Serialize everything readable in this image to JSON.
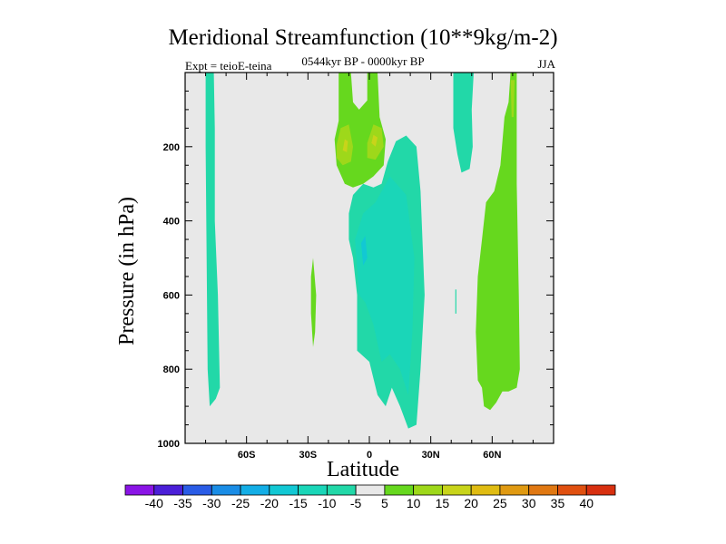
{
  "chart_data": {
    "type": "heatmap",
    "title": "Meridional Streamfunction (10**9kg/m-2)",
    "subtitle": "0544kyr BP - 0000kyr BP",
    "left_label": "Expt = teioE-teina",
    "right_label": "JJA",
    "xlabel": "Latitude",
    "ylabel": "Pressure (in hPa)",
    "xlim": [
      -90,
      90
    ],
    "ylim": [
      1000,
      0
    ],
    "x_ticks": [
      {
        "value": -60,
        "label": "60S"
      },
      {
        "value": -30,
        "label": "30S"
      },
      {
        "value": 0,
        "label": "0"
      },
      {
        "value": 30,
        "label": "30N"
      },
      {
        "value": 60,
        "label": "60N"
      }
    ],
    "y_ticks": [
      {
        "value": 200,
        "label": "200"
      },
      {
        "value": 400,
        "label": "400"
      },
      {
        "value": 600,
        "label": "600"
      },
      {
        "value": 800,
        "label": "800"
      },
      {
        "value": 1000,
        "label": "1000"
      }
    ],
    "background_color": "#e8e8e8",
    "colorbar": {
      "levels": [
        "-40",
        "-35",
        "-30",
        "-25",
        "-20",
        "-15",
        "-10",
        "-5",
        "5",
        "10",
        "15",
        "20",
        "25",
        "30",
        "35",
        "40"
      ],
      "colors": [
        "#8a14e6",
        "#4b1fd8",
        "#2a5ce6",
        "#1a8de6",
        "#13aee6",
        "#12c8d4",
        "#1ad6b8",
        "#22d8a8",
        "#e8e8e8",
        "#66d81e",
        "#9ed81a",
        "#c8d41a",
        "#e0bc12",
        "#e09a12",
        "#e07812",
        "#e05010",
        "#d83010"
      ]
    },
    "regions": [
      {
        "name": "sh-high-lat-negative-column",
        "color": "#22d8a8",
        "points": [
          [
            -80,
            0
          ],
          [
            -76,
            0
          ],
          [
            -75.5,
            150
          ],
          [
            -75.5,
            400
          ],
          [
            -74,
            600
          ],
          [
            -73,
            850
          ],
          [
            -75,
            880
          ],
          [
            -78,
            900
          ],
          [
            -79,
            800
          ],
          [
            -79.5,
            500
          ],
          [
            -80,
            200
          ]
        ]
      },
      {
        "name": "sh-subtropical-positive-sliver",
        "color": "#66d81e",
        "points": [
          [
            -27.5,
            500
          ],
          [
            -26,
            600
          ],
          [
            -26.5,
            700
          ],
          [
            -27.5,
            740
          ],
          [
            -28.5,
            650
          ],
          [
            -28.5,
            550
          ]
        ]
      },
      {
        "name": "tropical-upper-positive-cell",
        "color": "#66d81e",
        "points": [
          [
            -15,
            0
          ],
          [
            -9,
            0
          ],
          [
            -8,
            80
          ],
          [
            -5,
            100
          ],
          [
            -1,
            75
          ],
          [
            -1,
            0
          ],
          [
            4,
            0
          ],
          [
            5,
            120
          ],
          [
            8,
            180
          ],
          [
            7,
            250
          ],
          [
            2,
            280
          ],
          [
            -3,
            300
          ],
          [
            -8,
            310
          ],
          [
            -12,
            300
          ],
          [
            -16,
            250
          ],
          [
            -17,
            180
          ],
          [
            -15,
            130
          ]
        ]
      },
      {
        "name": "tropical-upper-core-a",
        "color": "#9ed81a",
        "points": [
          [
            -16,
            195
          ],
          [
            -14,
            150
          ],
          [
            -10,
            140
          ],
          [
            -8,
            200
          ],
          [
            -9,
            240
          ],
          [
            -13,
            250
          ],
          [
            -16,
            230
          ]
        ]
      },
      {
        "name": "tropical-upper-core-b",
        "color": "#9ed81a",
        "points": [
          [
            -1,
            190
          ],
          [
            2,
            140
          ],
          [
            6,
            150
          ],
          [
            7,
            200
          ],
          [
            3,
            235
          ],
          [
            -1,
            230
          ]
        ]
      },
      {
        "name": "tropical-upper-peak-a",
        "color": "#c8d41a",
        "points": [
          [
            -13,
            210
          ],
          [
            -12,
            180
          ],
          [
            -10.5,
            185
          ],
          [
            -11,
            215
          ]
        ]
      },
      {
        "name": "tropical-upper-peak-b",
        "color": "#c8d41a",
        "points": [
          [
            1,
            190
          ],
          [
            2,
            168
          ],
          [
            4,
            175
          ],
          [
            3,
            200
          ]
        ]
      },
      {
        "name": "tropical-lower-negative-cell",
        "color": "#22d8a8",
        "points": [
          [
            -10,
            450
          ],
          [
            -10,
            380
          ],
          [
            -8,
            330
          ],
          [
            -3,
            300
          ],
          [
            2,
            310
          ],
          [
            6,
            300
          ],
          [
            9,
            240
          ],
          [
            13,
            185
          ],
          [
            18,
            170
          ],
          [
            23,
            200
          ],
          [
            25,
            320
          ],
          [
            27,
            600
          ],
          [
            25,
            800
          ],
          [
            23,
            950
          ],
          [
            19,
            960
          ],
          [
            15,
            900
          ],
          [
            11,
            850
          ],
          [
            8,
            900
          ],
          [
            4,
            870
          ],
          [
            0,
            780
          ],
          [
            -6,
            750
          ],
          [
            -6,
            600
          ],
          [
            -8,
            500
          ]
        ]
      },
      {
        "name": "tropical-lower-core",
        "color": "#1ad6b8",
        "points": [
          [
            -5,
            600
          ],
          [
            -7,
            450
          ],
          [
            -3,
            380
          ],
          [
            3,
            350
          ],
          [
            10,
            280
          ],
          [
            18,
            330
          ],
          [
            22,
            500
          ],
          [
            21,
            700
          ],
          [
            19,
            870
          ],
          [
            15,
            800
          ],
          [
            10,
            760
          ],
          [
            6,
            780
          ],
          [
            2,
            680
          ],
          [
            -2,
            620
          ]
        ]
      },
      {
        "name": "tropical-lower-peak",
        "color": "#12c8d4",
        "points": [
          [
            -3,
            520
          ],
          [
            -4,
            460
          ],
          [
            -2,
            440
          ],
          [
            -1,
            500
          ]
        ]
      },
      {
        "name": "nh-midlat-negative-column",
        "color": "#22d8a8",
        "points": [
          [
            41,
            0
          ],
          [
            51,
            0
          ],
          [
            50,
            100
          ],
          [
            50.5,
            200
          ],
          [
            49,
            260
          ],
          [
            45,
            270
          ],
          [
            43,
            220
          ],
          [
            41,
            150
          ]
        ]
      },
      {
        "name": "nh-midlat-negative-sliver",
        "color": "#22d8a8",
        "points": [
          [
            42,
            585
          ],
          [
            42.5,
            585
          ],
          [
            42.5,
            650
          ],
          [
            42,
            650
          ]
        ]
      },
      {
        "name": "nh-high-lat-positive-column",
        "color": "#66d81e",
        "points": [
          [
            69,
            0
          ],
          [
            72,
            0
          ],
          [
            72,
            300
          ],
          [
            73,
            600
          ],
          [
            73.5,
            800
          ],
          [
            72,
            850
          ],
          [
            68,
            860
          ],
          [
            65,
            860
          ],
          [
            62,
            890
          ],
          [
            59,
            910
          ],
          [
            56,
            900
          ],
          [
            55,
            850
          ],
          [
            53,
            830
          ],
          [
            52,
            700
          ],
          [
            53,
            550
          ],
          [
            55,
            450
          ],
          [
            57,
            350
          ],
          [
            61,
            320
          ],
          [
            64,
            250
          ],
          [
            66,
            120
          ],
          [
            68,
            80
          ]
        ]
      },
      {
        "name": "nh-high-lat-positive-core",
        "color": "#9ed81a",
        "points": [
          [
            69,
            20
          ],
          [
            71,
            20
          ],
          [
            70.5,
            120
          ],
          [
            69.5,
            120
          ]
        ]
      }
    ]
  }
}
